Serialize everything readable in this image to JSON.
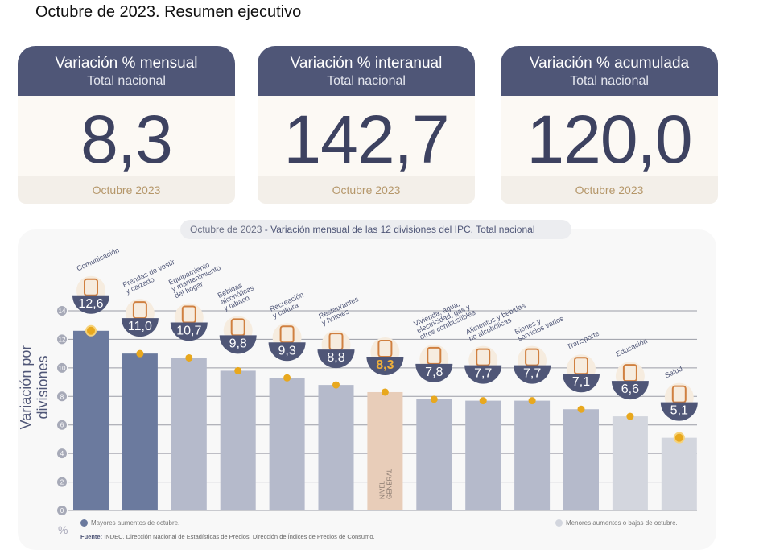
{
  "page_title": "Octubre de 2023. Resumen ejecutivo",
  "cards": [
    {
      "title": "Variación % mensual",
      "subtitle": "Total nacional",
      "value": "8,3",
      "period": "Octubre 2023"
    },
    {
      "title": "Variación % interanual",
      "subtitle": "Total nacional",
      "value": "142,7",
      "period": "Octubre 2023"
    },
    {
      "title": "Variación % acumulada",
      "subtitle": "Total nacional",
      "value": "120,0",
      "period": "Octubre 2023"
    }
  ],
  "chart_data": {
    "type": "bar",
    "title_date": "Octubre de 2023",
    "title": "- Variación mensual de las 12 divisiones del IPC. Total nacional",
    "ylabel": "Variación por divisiones",
    "yunit": "%",
    "ylim": [
      0,
      14
    ],
    "yticks": [
      "0",
      "2",
      "4",
      "6",
      "8",
      "10",
      "12",
      "14"
    ],
    "categories": [
      [
        "Comunicación"
      ],
      [
        "Prendas de vestir",
        "y calzado"
      ],
      [
        "Equipamiento",
        "y mantenimiento",
        "del hogar"
      ],
      [
        "Bebidas",
        "alcohólicas",
        "y tabaco"
      ],
      [
        "Recreación",
        "y cultura"
      ],
      [
        "Restaurantes",
        "y hoteles"
      ],
      [],
      [
        "Vivienda, agua,",
        "electricidad, gas y",
        "otros combustibles"
      ],
      [
        "Alimentos y bebidas",
        "no alcohólicas"
      ],
      [
        "Bienes y",
        "servicios varios"
      ],
      [
        "Transporte"
      ],
      [
        "Educación"
      ],
      [
        "Salud"
      ]
    ],
    "values": [
      12.6,
      11.0,
      10.7,
      9.8,
      9.3,
      8.8,
      8.3,
      7.8,
      7.7,
      7.7,
      7.1,
      6.6,
      5.1
    ],
    "value_labels": [
      "12,6",
      "11,0",
      "10,7",
      "9,8",
      "9,3",
      "8,8",
      "8,3",
      "7,8",
      "7,7",
      "7,7",
      "7,1",
      "6,6",
      "5,1"
    ],
    "groups": [
      "high",
      "high",
      "mid",
      "mid",
      "mid",
      "mid",
      "general",
      "mid",
      "mid",
      "mid",
      "mid",
      "low",
      "low"
    ],
    "icons": [
      "phone-icon",
      "shirt-icon",
      "washing-machine-icon",
      "bottle-icon",
      "umbrella-sun-icon",
      "plate-cutlery-icon",
      "shopping-bag-icon",
      "lightbulb-icon",
      "chicken-icon",
      "comb-scissors-icon",
      "bus-card-icon",
      "notebook-icon",
      "health-cross-icon"
    ],
    "general_label": [
      "NIVEL",
      "GENERAL"
    ],
    "colors": {
      "high": "#6b7a9e",
      "mid": "#b5bacb",
      "general": "#e8cdb9",
      "low": "#d3d6de",
      "badge": "#4f5677",
      "dot": "#e8a81e",
      "general_value": "#f0b03a"
    },
    "legend": [
      {
        "label": "Mayores aumentos de octubre.",
        "color": "#6b7a9e"
      },
      {
        "label": "Menores aumentos o bajas de octubre.",
        "color": "#d3d6de"
      }
    ],
    "source_label": "Fuente:",
    "source": "INDEC, Dirección Nacional de Estadísticas de Precios. Dirección de Índices de Precios de Consumo."
  }
}
